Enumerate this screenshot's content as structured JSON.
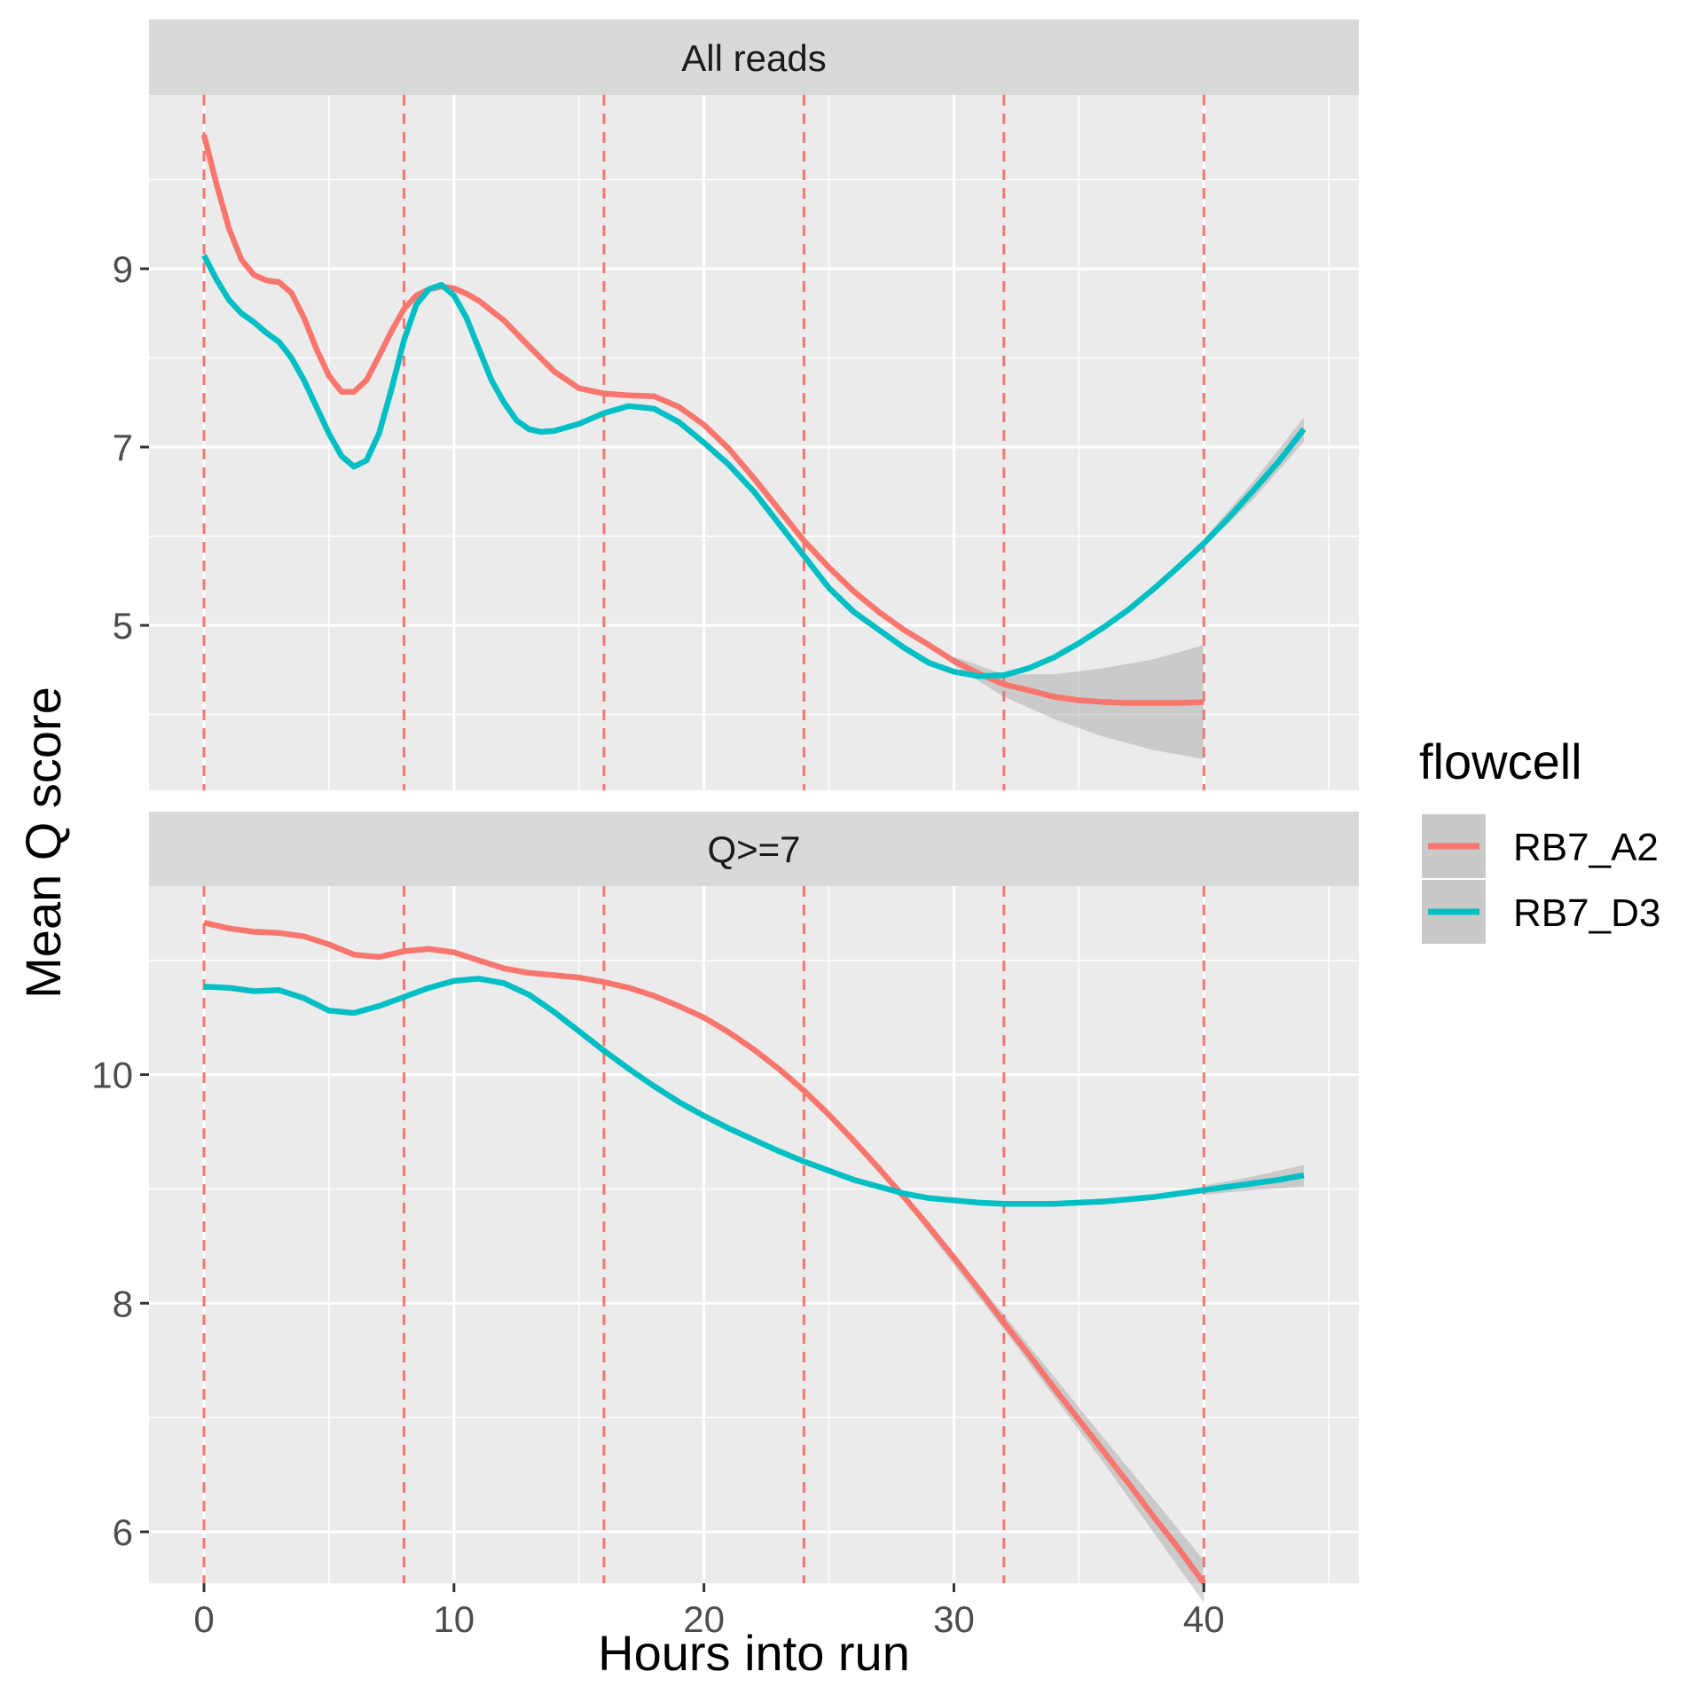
{
  "chart_data": {
    "type": "line",
    "xlabel": "Hours into run",
    "ylabel": "Mean Q score",
    "xlim": [
      -2.2,
      46.2
    ],
    "x_ticks": [
      0,
      10,
      20,
      30,
      40
    ],
    "x_tick_labels": [
      "0",
      "10",
      "20",
      "30",
      "40"
    ],
    "x_minor_ticks": [
      5,
      15,
      25,
      35,
      45
    ],
    "vlines": {
      "x": [
        0,
        8,
        16,
        24,
        32,
        40
      ],
      "color": "#F8766D",
      "style": "dashed"
    },
    "legend": {
      "title": "flowcell",
      "position": "right",
      "entries": [
        {
          "label": "RB7_A2",
          "color": "#F8766D"
        },
        {
          "label": "RB7_D3",
          "color": "#00BFC4"
        }
      ]
    },
    "panels": [
      {
        "strip": "All reads",
        "ylim": [
          3.15,
          10.95
        ],
        "y_ticks": [
          5,
          7,
          9
        ],
        "y_tick_labels": [
          "5",
          "7",
          "9"
        ],
        "y_minor_ticks": [
          4,
          6,
          8,
          10
        ],
        "series": [
          {
            "name": "RB7_A2",
            "color": "#F8766D",
            "points": [
              [
                0,
                10.5
              ],
              [
                0.5,
                9.95
              ],
              [
                1,
                9.45
              ],
              [
                1.5,
                9.1
              ],
              [
                2,
                8.93
              ],
              [
                2.5,
                8.87
              ],
              [
                3,
                8.85
              ],
              [
                3.5,
                8.73
              ],
              [
                4,
                8.45
              ],
              [
                4.5,
                8.1
              ],
              [
                5,
                7.8
              ],
              [
                5.5,
                7.62
              ],
              [
                6,
                7.62
              ],
              [
                6.5,
                7.75
              ],
              [
                7,
                8.02
              ],
              [
                7.5,
                8.3
              ],
              [
                8,
                8.55
              ],
              [
                8.5,
                8.7
              ],
              [
                9,
                8.77
              ],
              [
                9.5,
                8.8
              ],
              [
                10,
                8.78
              ],
              [
                10.5,
                8.72
              ],
              [
                11,
                8.64
              ],
              [
                12,
                8.42
              ],
              [
                13,
                8.13
              ],
              [
                14,
                7.85
              ],
              [
                15,
                7.66
              ],
              [
                16,
                7.6
              ],
              [
                17,
                7.58
              ],
              [
                18,
                7.57
              ],
              [
                19,
                7.45
              ],
              [
                20,
                7.25
              ],
              [
                21,
                6.98
              ],
              [
                22,
                6.65
              ],
              [
                23,
                6.3
              ],
              [
                24,
                5.95
              ],
              [
                25,
                5.65
              ],
              [
                26,
                5.38
              ],
              [
                27,
                5.15
              ],
              [
                28,
                4.95
              ],
              [
                29,
                4.78
              ],
              [
                30,
                4.6
              ],
              [
                31,
                4.46
              ],
              [
                32,
                4.34
              ],
              [
                33,
                4.27
              ],
              [
                34,
                4.2
              ],
              [
                35,
                4.16
              ],
              [
                36,
                4.14
              ],
              [
                37,
                4.13
              ],
              [
                38,
                4.13
              ],
              [
                39,
                4.13
              ],
              [
                40,
                4.14
              ]
            ],
            "ribbon": {
              "x": [
                30,
                32,
                34,
                36,
                38,
                40
              ],
              "lower": [
                4.55,
                4.2,
                3.95,
                3.75,
                3.6,
                3.5
              ],
              "upper": [
                4.65,
                4.45,
                4.45,
                4.52,
                4.62,
                4.78
              ]
            }
          },
          {
            "name": "RB7_D3",
            "color": "#00BFC4",
            "points": [
              [
                0,
                9.15
              ],
              [
                0.5,
                8.88
              ],
              [
                1,
                8.65
              ],
              [
                1.5,
                8.5
              ],
              [
                2,
                8.4
              ],
              [
                2.5,
                8.28
              ],
              [
                3,
                8.18
              ],
              [
                3.5,
                8.0
              ],
              [
                4,
                7.75
              ],
              [
                4.5,
                7.45
              ],
              [
                5,
                7.15
              ],
              [
                5.5,
                6.9
              ],
              [
                6,
                6.78
              ],
              [
                6.5,
                6.85
              ],
              [
                7,
                7.15
              ],
              [
                7.5,
                7.65
              ],
              [
                8,
                8.2
              ],
              [
                8.5,
                8.6
              ],
              [
                9,
                8.77
              ],
              [
                9.5,
                8.82
              ],
              [
                10,
                8.7
              ],
              [
                10.5,
                8.45
              ],
              [
                11,
                8.1
              ],
              [
                11.5,
                7.75
              ],
              [
                12,
                7.5
              ],
              [
                12.5,
                7.3
              ],
              [
                13,
                7.2
              ],
              [
                13.5,
                7.17
              ],
              [
                14,
                7.18
              ],
              [
                15,
                7.26
              ],
              [
                16,
                7.38
              ],
              [
                17,
                7.46
              ],
              [
                18,
                7.43
              ],
              [
                19,
                7.28
              ],
              [
                20,
                7.05
              ],
              [
                21,
                6.8
              ],
              [
                22,
                6.5
              ],
              [
                23,
                6.14
              ],
              [
                24,
                5.78
              ],
              [
                25,
                5.42
              ],
              [
                26,
                5.15
              ],
              [
                27,
                4.95
              ],
              [
                28,
                4.75
              ],
              [
                29,
                4.58
              ],
              [
                30,
                4.48
              ],
              [
                31,
                4.43
              ],
              [
                32,
                4.44
              ],
              [
                33,
                4.52
              ],
              [
                34,
                4.64
              ],
              [
                35,
                4.8
              ],
              [
                36,
                4.98
              ],
              [
                37,
                5.18
              ],
              [
                38,
                5.41
              ],
              [
                39,
                5.66
              ],
              [
                40,
                5.92
              ],
              [
                41,
                6.21
              ],
              [
                42,
                6.52
              ],
              [
                43,
                6.84
              ],
              [
                44,
                7.2
              ]
            ],
            "ribbon": {
              "x": [
                40,
                42,
                44
              ],
              "lower": [
                5.88,
                6.42,
                7.06
              ],
              "upper": [
                5.97,
                6.62,
                7.33
              ]
            }
          }
        ]
      },
      {
        "strip": "Q>=7",
        "ylim": [
          5.55,
          11.65
        ],
        "y_ticks": [
          6,
          8,
          10
        ],
        "y_tick_labels": [
          "6",
          "8",
          "10"
        ],
        "y_minor_ticks": [
          7,
          9,
          11
        ],
        "series": [
          {
            "name": "RB7_A2",
            "color": "#F8766D",
            "points": [
              [
                0,
                11.33
              ],
              [
                1,
                11.28
              ],
              [
                2,
                11.25
              ],
              [
                3,
                11.24
              ],
              [
                4,
                11.21
              ],
              [
                5,
                11.14
              ],
              [
                6,
                11.05
              ],
              [
                7,
                11.03
              ],
              [
                8,
                11.08
              ],
              [
                9,
                11.1
              ],
              [
                10,
                11.07
              ],
              [
                11,
                11.0
              ],
              [
                12,
                10.93
              ],
              [
                13,
                10.89
              ],
              [
                14,
                10.87
              ],
              [
                15,
                10.85
              ],
              [
                16,
                10.81
              ],
              [
                17,
                10.76
              ],
              [
                18,
                10.69
              ],
              [
                19,
                10.6
              ],
              [
                20,
                10.5
              ],
              [
                21,
                10.37
              ],
              [
                22,
                10.22
              ],
              [
                23,
                10.05
              ],
              [
                24,
                9.86
              ],
              [
                25,
                9.65
              ],
              [
                26,
                9.42
              ],
              [
                27,
                9.18
              ],
              [
                28,
                8.93
              ],
              [
                29,
                8.67
              ],
              [
                30,
                8.4
              ],
              [
                31,
                8.12
              ],
              [
                32,
                7.83
              ],
              [
                33,
                7.55
              ],
              [
                34,
                7.26
              ],
              [
                35,
                6.98
              ],
              [
                36,
                6.7
              ],
              [
                37,
                6.42
              ],
              [
                38,
                6.13
              ],
              [
                39,
                5.85
              ],
              [
                40,
                5.55
              ]
            ],
            "ribbon": {
              "x": [
                28,
                32,
                36,
                40
              ],
              "lower": [
                8.9,
                7.77,
                6.6,
                5.38
              ],
              "upper": [
                8.96,
                7.9,
                6.82,
                5.75
              ]
            }
          },
          {
            "name": "RB7_D3",
            "color": "#00BFC4",
            "points": [
              [
                0,
                10.77
              ],
              [
                1,
                10.76
              ],
              [
                2,
                10.73
              ],
              [
                3,
                10.74
              ],
              [
                4,
                10.67
              ],
              [
                5,
                10.56
              ],
              [
                6,
                10.54
              ],
              [
                7,
                10.6
              ],
              [
                8,
                10.68
              ],
              [
                9,
                10.76
              ],
              [
                10,
                10.82
              ],
              [
                11,
                10.84
              ],
              [
                12,
                10.8
              ],
              [
                13,
                10.7
              ],
              [
                14,
                10.55
              ],
              [
                15,
                10.38
              ],
              [
                16,
                10.21
              ],
              [
                17,
                10.05
              ],
              [
                18,
                9.9
              ],
              [
                19,
                9.76
              ],
              [
                20,
                9.64
              ],
              [
                21,
                9.53
              ],
              [
                22,
                9.43
              ],
              [
                23,
                9.33
              ],
              [
                24,
                9.24
              ],
              [
                25,
                9.16
              ],
              [
                26,
                9.08
              ],
              [
                27,
                9.02
              ],
              [
                28,
                8.96
              ],
              [
                29,
                8.92
              ],
              [
                30,
                8.9
              ],
              [
                31,
                8.88
              ],
              [
                32,
                8.87
              ],
              [
                33,
                8.87
              ],
              [
                34,
                8.87
              ],
              [
                35,
                8.88
              ],
              [
                36,
                8.89
              ],
              [
                37,
                8.91
              ],
              [
                38,
                8.93
              ],
              [
                39,
                8.96
              ],
              [
                40,
                8.99
              ],
              [
                41,
                9.02
              ],
              [
                42,
                9.05
              ],
              [
                43,
                9.08
              ],
              [
                44,
                9.12
              ]
            ],
            "ribbon": {
              "x": [
                40,
                42,
                44
              ],
              "lower": [
                8.95,
                8.99,
                9.02
              ],
              "upper": [
                9.03,
                9.11,
                9.21
              ]
            }
          }
        ]
      }
    ]
  }
}
